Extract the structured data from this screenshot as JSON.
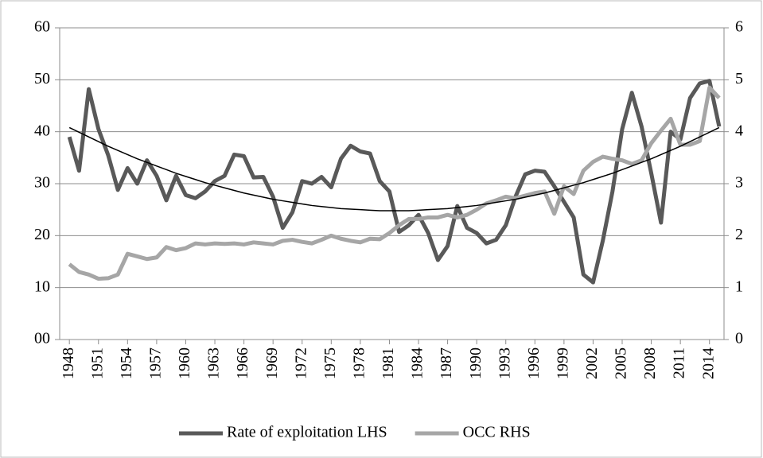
{
  "chart_data": {
    "type": "line",
    "x": [
      1948,
      1949,
      1950,
      1951,
      1952,
      1953,
      1954,
      1955,
      1956,
      1957,
      1958,
      1959,
      1960,
      1961,
      1962,
      1963,
      1964,
      1965,
      1966,
      1967,
      1968,
      1969,
      1970,
      1971,
      1972,
      1973,
      1974,
      1975,
      1976,
      1977,
      1978,
      1979,
      1980,
      1981,
      1982,
      1983,
      1984,
      1985,
      1986,
      1987,
      1988,
      1989,
      1990,
      1991,
      1992,
      1993,
      1994,
      1995,
      1996,
      1997,
      1998,
      1999,
      2000,
      2001,
      2002,
      2003,
      2004,
      2005,
      2006,
      2007,
      2008,
      2009,
      2010,
      2011,
      2012,
      2013,
      2014,
      2015
    ],
    "xlim": [
      1947,
      2015.5
    ],
    "xticks": [
      1948,
      1951,
      1954,
      1957,
      1960,
      1963,
      1966,
      1969,
      1972,
      1975,
      1978,
      1981,
      1984,
      1987,
      1990,
      1993,
      1996,
      1999,
      2002,
      2005,
      2008,
      2011,
      2014
    ],
    "ylim": [
      0,
      60
    ],
    "yticks": [
      {
        "value": 0,
        "label": "00"
      },
      10,
      20,
      30,
      40,
      50,
      60
    ],
    "y2lim": [
      0,
      6
    ],
    "y2ticks": [
      0,
      1,
      2,
      3,
      4,
      5,
      6
    ],
    "grid": true,
    "legend": "bottom",
    "series": [
      {
        "name": "Rate of exploitation LHS",
        "color": "#595959",
        "values": [
          39,
          32.5,
          48.2,
          40.5,
          35.5,
          28.8,
          33,
          30,
          34.5,
          31.5,
          26.8,
          31.5,
          27.8,
          27.2,
          28.5,
          30.5,
          31.5,
          35.6,
          35.3,
          31.2,
          31.3,
          27.5,
          21.5,
          24.5,
          30.5,
          30,
          31.3,
          29.3,
          34.8,
          37.3,
          36.2,
          35.8,
          30.5,
          28.5,
          20.7,
          22,
          24,
          20.5,
          15.3,
          18,
          25.7,
          21.5,
          20.5,
          18.5,
          19.2,
          22,
          27.5,
          31.8,
          32.5,
          32.3,
          29.5,
          26.5,
          23.5,
          12.5,
          11,
          19,
          28.5,
          40.5,
          47.5,
          41,
          32,
          22.5,
          40,
          38.5,
          46.5,
          49.3,
          49.8,
          41
        ]
      },
      {
        "name": "OCC RHS",
        "color": "#a6a6a6",
        "axis": "y2",
        "values": [
          1.45,
          1.3,
          1.25,
          1.17,
          1.18,
          1.25,
          1.65,
          1.6,
          1.55,
          1.58,
          1.78,
          1.72,
          1.76,
          1.85,
          1.83,
          1.85,
          1.84,
          1.85,
          1.83,
          1.87,
          1.85,
          1.83,
          1.9,
          1.92,
          1.88,
          1.85,
          1.92,
          2.0,
          1.94,
          1.9,
          1.87,
          1.94,
          1.93,
          2.05,
          2.2,
          2.32,
          2.32,
          2.35,
          2.35,
          2.4,
          2.35,
          2.4,
          2.5,
          2.62,
          2.68,
          2.75,
          2.72,
          2.77,
          2.82,
          2.85,
          2.42,
          2.95,
          2.8,
          3.25,
          3.42,
          3.52,
          3.48,
          3.45,
          3.38,
          3.45,
          3.78,
          4.02,
          4.25,
          3.75,
          3.75,
          3.82,
          4.85,
          4.65
        ]
      }
    ],
    "trendline": {
      "color": "#000000",
      "values": [
        40.8,
        39.9,
        39.0,
        38.1,
        37.2,
        36.4,
        35.6,
        34.8,
        34.1,
        33.4,
        32.7,
        32.0,
        31.4,
        30.8,
        30.2,
        29.7,
        29.2,
        28.7,
        28.2,
        27.8,
        27.4,
        27.0,
        26.7,
        26.4,
        26.1,
        25.8,
        25.6,
        25.4,
        25.2,
        25.1,
        25.0,
        24.9,
        24.8,
        24.8,
        24.8,
        24.8,
        24.9,
        25.0,
        25.1,
        25.2,
        25.4,
        25.6,
        25.8,
        26.1,
        26.4,
        26.7,
        27.0,
        27.4,
        27.8,
        28.2,
        28.7,
        29.2,
        29.7,
        30.2,
        30.8,
        31.4,
        32.0,
        32.7,
        33.4,
        34.1,
        34.8,
        35.6,
        36.4,
        37.2,
        38.1,
        39.0,
        39.9,
        40.8
      ]
    }
  }
}
